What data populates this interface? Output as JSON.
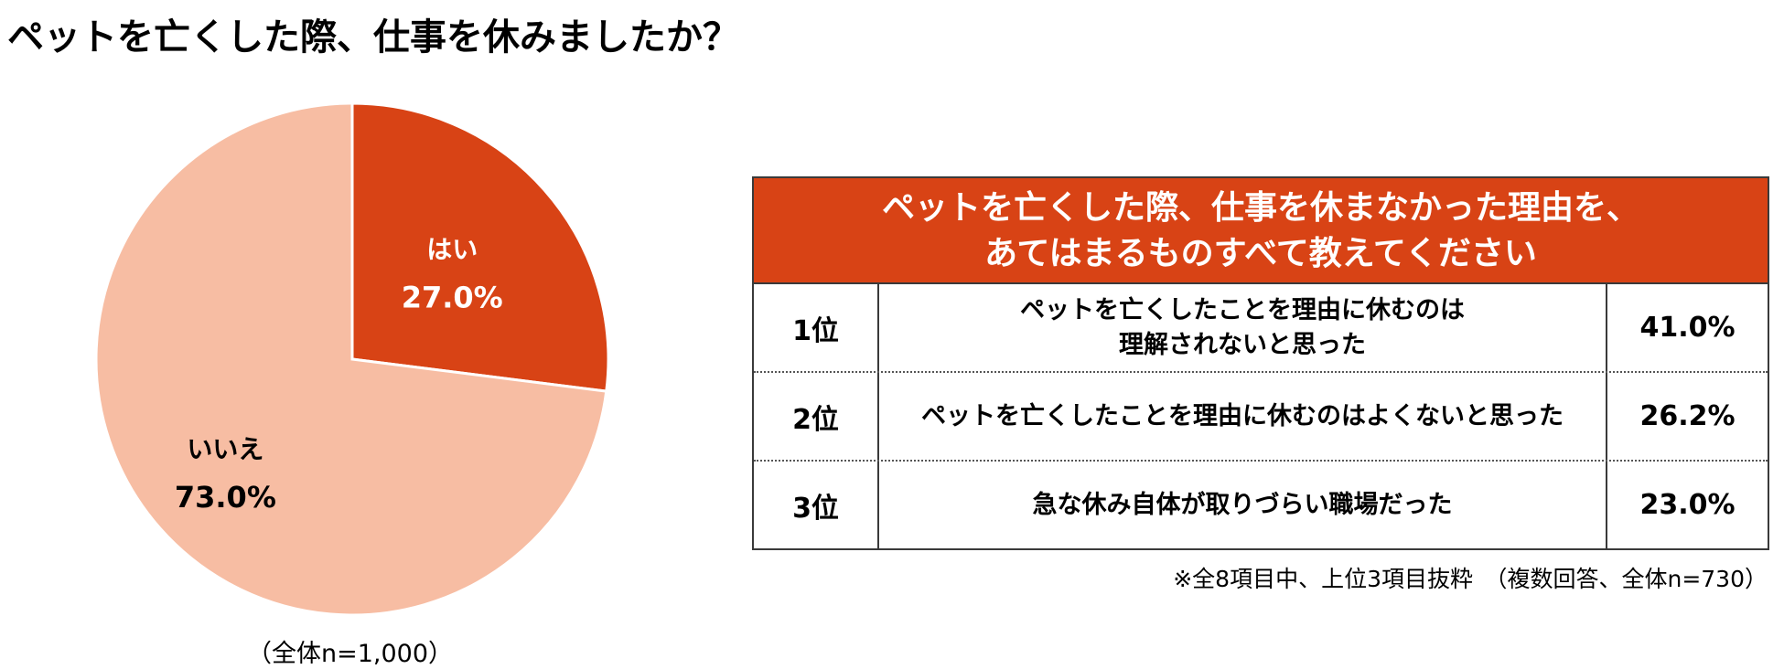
{
  "title": "ペットを亡くした際、仕事を休みましたか？",
  "colors": {
    "accent": "#d84315",
    "slice_light": "#f7bda3",
    "table_border": "#3a3a3a"
  },
  "chart_data": {
    "type": "pie",
    "categories": [
      "はい",
      "いいえ"
    ],
    "values": [
      27.0,
      73.0
    ],
    "value_labels": [
      "27.0%",
      "73.0%"
    ],
    "colors": [
      "#d84315",
      "#f7bda3"
    ],
    "note": "（全体n=1,000）"
  },
  "table": {
    "header_line1": "ペットを亡くした際、仕事を休まなかった理由を、",
    "header_line2": "あてはまるものすべて教えてください",
    "rows": [
      {
        "rank": "1位",
        "reason_line1": "ペットを亡くしたことを理由に休むのは",
        "reason_line2": "理解されないと思った",
        "value": "41.0%"
      },
      {
        "rank": "2位",
        "reason_line1": "ペットを亡くしたことを理由に休むのはよくないと思った",
        "reason_line2": "",
        "value": "26.2%"
      },
      {
        "rank": "3位",
        "reason_line1": "急な休み自体が取りづらい職場だった",
        "reason_line2": "",
        "value": "23.0%"
      }
    ],
    "note": "※全8項目中、上位3項目抜粋　（複数回答、全体n=730）"
  }
}
